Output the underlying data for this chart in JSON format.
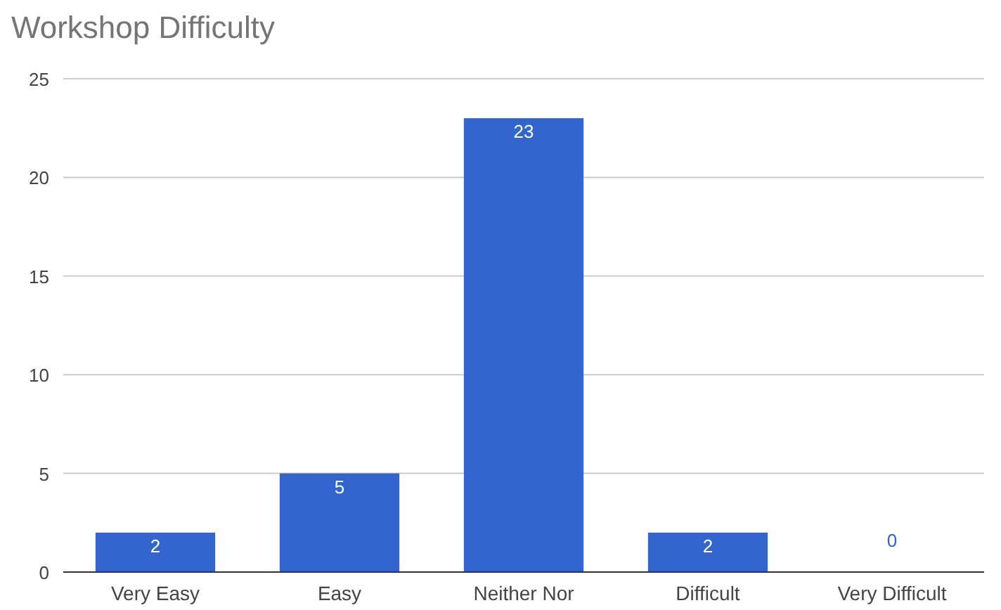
{
  "chart_data": {
    "type": "bar",
    "title": "Workshop Difficulty",
    "categories": [
      "Very Easy",
      "Easy",
      "Neither Nor",
      "Difficult",
      "Very Difficult"
    ],
    "values": [
      2,
      5,
      23,
      2,
      0
    ],
    "color": "#3366cc",
    "ylim": [
      0,
      25
    ],
    "yticks": [
      0,
      5,
      10,
      15,
      20,
      25
    ],
    "grid": "y",
    "data_labels": true
  }
}
